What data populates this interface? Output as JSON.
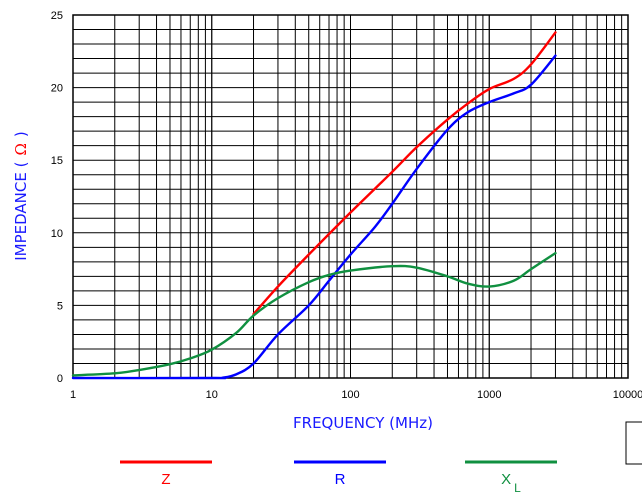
{
  "chart_data": {
    "type": "line",
    "title": "",
    "xlabel": "FREQUENCY (MHz)",
    "ylabel_main": "IMPEDANCE (",
    "ylabel_unit": "Ω",
    "ylabel_end": ")",
    "x_scale": "log",
    "xlim": [
      1,
      10000
    ],
    "ylim": [
      0,
      25
    ],
    "grid": true,
    "x_ticks": [
      "1",
      "10",
      "100",
      "1000",
      "10000"
    ],
    "y_ticks": [
      "0",
      "5",
      "10",
      "15",
      "20",
      "25"
    ],
    "legend_position": "bottom",
    "colors": {
      "Z": "#ff0000",
      "R": "#0000ff",
      "XL": "#109040",
      "axis_title": "#1a1aff"
    },
    "series": [
      {
        "name": "Z",
        "color": "#ff0000",
        "points": [
          [
            20,
            4.4
          ],
          [
            30,
            6.3
          ],
          [
            50,
            8.5
          ],
          [
            100,
            11.4
          ],
          [
            200,
            14.2
          ],
          [
            300,
            15.9
          ],
          [
            500,
            17.8
          ],
          [
            700,
            18.9
          ],
          [
            1000,
            19.9
          ],
          [
            1500,
            20.6
          ],
          [
            2000,
            21.6
          ],
          [
            3000,
            23.8
          ]
        ]
      },
      {
        "name": "R",
        "color": "#0000ff",
        "points": [
          [
            1,
            0
          ],
          [
            10,
            0
          ],
          [
            12,
            0.02
          ],
          [
            15,
            0.25
          ],
          [
            20,
            1.0
          ],
          [
            30,
            3.0
          ],
          [
            50,
            5.0
          ],
          [
            70,
            6.7
          ],
          [
            100,
            8.5
          ],
          [
            150,
            10.4
          ],
          [
            200,
            12.0
          ],
          [
            300,
            14.4
          ],
          [
            500,
            17.1
          ],
          [
            700,
            18.3
          ],
          [
            1000,
            19.0
          ],
          [
            1500,
            19.6
          ],
          [
            2000,
            20.2
          ],
          [
            3000,
            22.2
          ]
        ]
      },
      {
        "name": "X",
        "sub": "L",
        "color": "#109040",
        "points": [
          [
            1,
            0.18
          ],
          [
            2,
            0.32
          ],
          [
            3,
            0.55
          ],
          [
            5,
            0.95
          ],
          [
            7,
            1.35
          ],
          [
            10,
            1.95
          ],
          [
            15,
            3.1
          ],
          [
            20,
            4.3
          ],
          [
            30,
            5.5
          ],
          [
            50,
            6.6
          ],
          [
            70,
            7.1
          ],
          [
            100,
            7.4
          ],
          [
            200,
            7.7
          ],
          [
            300,
            7.6
          ],
          [
            500,
            7.0
          ],
          [
            700,
            6.5
          ],
          [
            1000,
            6.3
          ],
          [
            1500,
            6.7
          ],
          [
            2000,
            7.5
          ],
          [
            3000,
            8.6
          ]
        ]
      }
    ]
  }
}
